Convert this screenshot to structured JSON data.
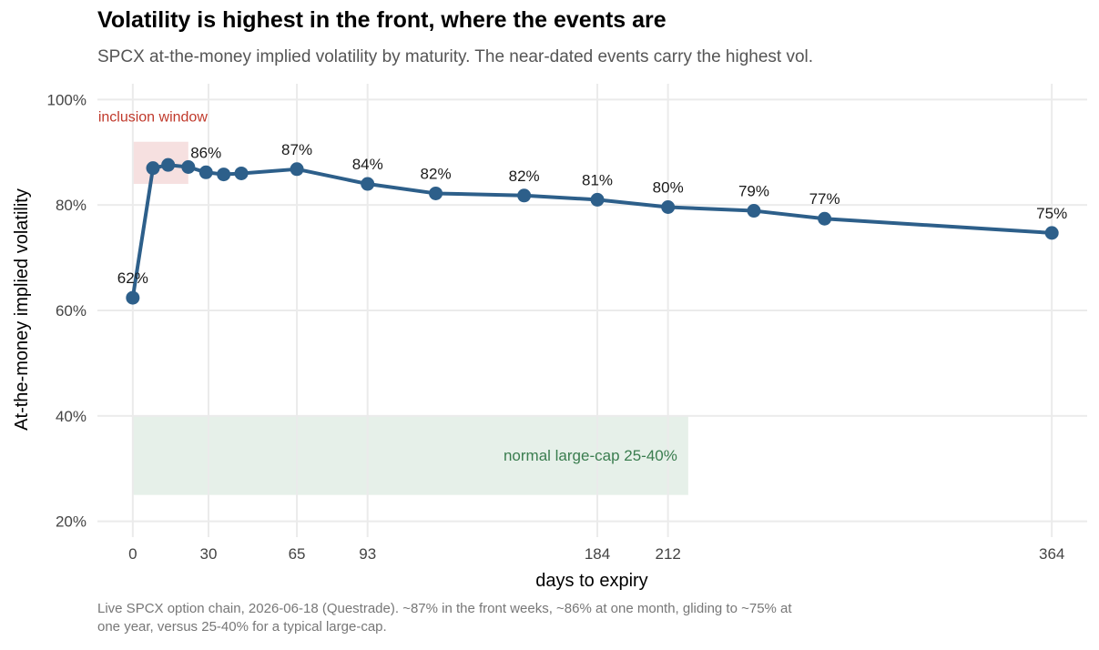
{
  "chart_data": {
    "type": "line",
    "title": "Volatility is highest in the front, where the events are",
    "subtitle": "SPCX at-the-money implied volatility by maturity. The near-dated events carry the highest vol.",
    "caption": "Live SPCX option chain, 2026-06-18 (Questrade). ~87% in the front weeks, ~86% at one month, gliding to ~75% at one year, versus 25-40% for a typical large-cap.",
    "xlabel": "days to expiry",
    "ylabel": "At-the-money implied volatility",
    "xlim": [
      -14,
      378
    ],
    "ylim": [
      17,
      103
    ],
    "x_ticks": [
      0,
      30,
      65,
      93,
      184,
      212,
      364
    ],
    "y_ticks": [
      20,
      40,
      60,
      80,
      100
    ],
    "y_tick_labels": [
      "20%",
      "40%",
      "60%",
      "80%",
      "100%"
    ],
    "grid": true,
    "series": [
      {
        "color": "#2d5f8a",
        "x": [
          0,
          8,
          14,
          22,
          29,
          36,
          43,
          65,
          93,
          120,
          155,
          184,
          212,
          246,
          274,
          364
        ],
        "y": [
          62.4,
          87.0,
          87.6,
          87.2,
          86.2,
          85.8,
          86.0,
          86.8,
          84.0,
          82.2,
          81.8,
          81.0,
          79.6,
          78.9,
          77.4,
          74.7
        ]
      }
    ],
    "point_labels": [
      {
        "x": 0,
        "y": 62.4,
        "text": "62%"
      },
      {
        "x": 29,
        "y": 86.2,
        "text": "86%"
      },
      {
        "x": 65,
        "y": 86.8,
        "text": "87%"
      },
      {
        "x": 93,
        "y": 84.0,
        "text": "84%"
      },
      {
        "x": 120,
        "y": 82.2,
        "text": "82%"
      },
      {
        "x": 155,
        "y": 81.8,
        "text": "82%"
      },
      {
        "x": 184,
        "y": 81.0,
        "text": "81%"
      },
      {
        "x": 212,
        "y": 79.6,
        "text": "80%"
      },
      {
        "x": 246,
        "y": 78.9,
        "text": "79%"
      },
      {
        "x": 274,
        "y": 77.4,
        "text": "77%"
      },
      {
        "x": 364,
        "y": 74.7,
        "text": "75%"
      }
    ],
    "bands": [
      {
        "name": "inclusion window",
        "x": [
          0,
          22
        ],
        "y": [
          84,
          92
        ],
        "color": "#f4dada",
        "label_color": "#c0392b"
      },
      {
        "name": "normal large-cap 25-40%",
        "x": [
          0,
          220
        ],
        "y": [
          25,
          40
        ],
        "color": "#e2ede5",
        "label_color": "#3a7d4f"
      }
    ]
  }
}
